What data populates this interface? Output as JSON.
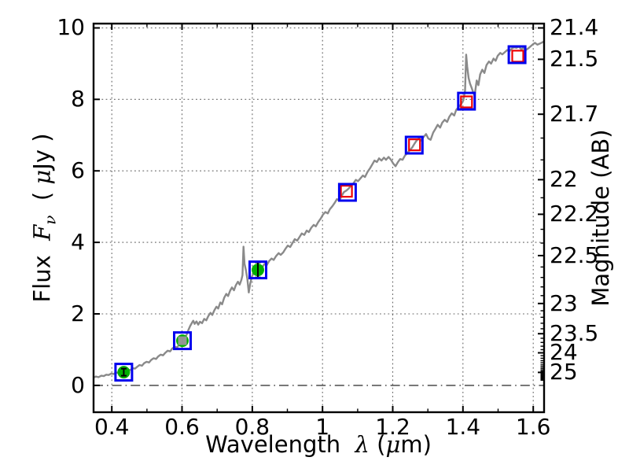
{
  "labels": {
    "xlabel": {
      "t1": "Wavelength  ",
      "lambda": "λ",
      "t2": " (",
      "mu": "μ",
      "t3": "m)"
    },
    "ylabel_left": {
      "t1": "Flux  ",
      "F": "F",
      "nu": "ν",
      "t2": "  ( ",
      "mu": "μ",
      "t3": "Jy )"
    },
    "ylabel_right": "Magnitude (AB)"
  },
  "chart_data": {
    "type": "line",
    "title": "",
    "xlabel": "Wavelength λ (μm)",
    "ylabel_left": "Flux Fν (μJy)",
    "ylabel_right": "Magnitude (AB)",
    "xlim": [
      0.348,
      1.631
    ],
    "ylim_flux": [
      -0.75,
      10.12
    ],
    "grid": "dotted on x and y majors",
    "zero_line": {
      "flux": 0,
      "style": "dashdot",
      "color": "#3a3a3a"
    },
    "x_major_ticks": [
      {
        "v": 0.4,
        "label": "0.4"
      },
      {
        "v": 0.6,
        "label": "0.6"
      },
      {
        "v": 0.8,
        "label": "0.8"
      },
      {
        "v": 1.0,
        "label": "1"
      },
      {
        "v": 1.2,
        "label": "1.2"
      },
      {
        "v": 1.4,
        "label": "1.4"
      },
      {
        "v": 1.6,
        "label": "1.6"
      }
    ],
    "x_minor_ticks": [
      0.5,
      0.7,
      0.9,
      1.1,
      1.3,
      1.5
    ],
    "flux_major_ticks": [
      {
        "v": 0,
        "label": "0"
      },
      {
        "v": 2,
        "label": "2"
      },
      {
        "v": 4,
        "label": "4"
      },
      {
        "v": 6,
        "label": "6"
      },
      {
        "v": 8,
        "label": "8"
      },
      {
        "v": 10,
        "label": "10"
      }
    ],
    "mag_major_ticks": [
      {
        "v": 21.4,
        "label": "21.4"
      },
      {
        "v": 21.5,
        "label": "21.5"
      },
      {
        "v": 21.7,
        "label": "21.7"
      },
      {
        "v": 22,
        "label": "22"
      },
      {
        "v": 22.2,
        "label": "22.2"
      },
      {
        "v": 22.5,
        "label": "22.5"
      },
      {
        "v": 23,
        "label": "23"
      },
      {
        "v": 23.5,
        "label": "23.5"
      },
      {
        "v": 24,
        "label": "24"
      },
      {
        "v": 25,
        "label": "25"
      }
    ],
    "mag_minor_step": 0.1,
    "mag_minor_range": [
      21.4,
      26.0
    ],
    "ab_zeropoint_ujy": 23.9,
    "series": [
      {
        "name": "model-spectrum",
        "type": "line",
        "color": "#8a8a8a",
        "width": 2.4,
        "points": [
          [
            0.348,
            0.22
          ],
          [
            0.355,
            0.25
          ],
          [
            0.362,
            0.23
          ],
          [
            0.37,
            0.27
          ],
          [
            0.377,
            0.26
          ],
          [
            0.384,
            0.3
          ],
          [
            0.391,
            0.29
          ],
          [
            0.398,
            0.33
          ],
          [
            0.405,
            0.32
          ],
          [
            0.412,
            0.36
          ],
          [
            0.419,
            0.35
          ],
          [
            0.426,
            0.38
          ],
          [
            0.433,
            0.4
          ],
          [
            0.44,
            0.42
          ],
          [
            0.447,
            0.44
          ],
          [
            0.453,
            0.43
          ],
          [
            0.459,
            0.48
          ],
          [
            0.466,
            0.47
          ],
          [
            0.472,
            0.52
          ],
          [
            0.479,
            0.57
          ],
          [
            0.486,
            0.55
          ],
          [
            0.492,
            0.62
          ],
          [
            0.499,
            0.66
          ],
          [
            0.506,
            0.64
          ],
          [
            0.512,
            0.71
          ],
          [
            0.519,
            0.76
          ],
          [
            0.526,
            0.74
          ],
          [
            0.532,
            0.81
          ],
          [
            0.539,
            0.86
          ],
          [
            0.546,
            0.84
          ],
          [
            0.552,
            0.91
          ],
          [
            0.559,
            0.97
          ],
          [
            0.566,
            0.95
          ],
          [
            0.572,
            1.03
          ],
          [
            0.579,
            1.08
          ],
          [
            0.586,
            1.06
          ],
          [
            0.592,
            1.15
          ],
          [
            0.599,
            1.22
          ],
          [
            0.606,
            1.3
          ],
          [
            0.613,
            1.42
          ],
          [
            0.618,
            1.55
          ],
          [
            0.623,
            1.66
          ],
          [
            0.628,
            1.75
          ],
          [
            0.632,
            1.81
          ],
          [
            0.636,
            1.72
          ],
          [
            0.641,
            1.79
          ],
          [
            0.646,
            1.7
          ],
          [
            0.651,
            1.78
          ],
          [
            0.657,
            1.74
          ],
          [
            0.663,
            1.86
          ],
          [
            0.669,
            1.82
          ],
          [
            0.675,
            1.94
          ],
          [
            0.681,
            2.03
          ],
          [
            0.686,
            1.97
          ],
          [
            0.692,
            2.1
          ],
          [
            0.698,
            2.2
          ],
          [
            0.703,
            2.15
          ],
          [
            0.709,
            2.32
          ],
          [
            0.714,
            2.27
          ],
          [
            0.72,
            2.45
          ],
          [
            0.726,
            2.56
          ],
          [
            0.731,
            2.5
          ],
          [
            0.737,
            2.65
          ],
          [
            0.742,
            2.74
          ],
          [
            0.748,
            2.66
          ],
          [
            0.753,
            2.8
          ],
          [
            0.759,
            2.9
          ],
          [
            0.764,
            2.82
          ],
          [
            0.769,
            2.95
          ],
          [
            0.772,
            3.08
          ],
          [
            0.775,
            3.88
          ],
          [
            0.778,
            3.4
          ],
          [
            0.782,
            3.22
          ],
          [
            0.786,
            2.98
          ],
          [
            0.79,
            2.6
          ],
          [
            0.794,
            2.84
          ],
          [
            0.799,
            3.05
          ],
          [
            0.804,
            3.14
          ],
          [
            0.81,
            3.1
          ],
          [
            0.816,
            3.22
          ],
          [
            0.822,
            3.17
          ],
          [
            0.828,
            3.3
          ],
          [
            0.835,
            3.4
          ],
          [
            0.841,
            3.36
          ],
          [
            0.848,
            3.48
          ],
          [
            0.855,
            3.55
          ],
          [
            0.861,
            3.51
          ],
          [
            0.868,
            3.62
          ],
          [
            0.875,
            3.7
          ],
          [
            0.881,
            3.65
          ],
          [
            0.888,
            3.72
          ],
          [
            0.895,
            3.83
          ],
          [
            0.901,
            3.91
          ],
          [
            0.908,
            3.87
          ],
          [
            0.915,
            3.99
          ],
          [
            0.921,
            4.09
          ],
          [
            0.928,
            4.05
          ],
          [
            0.935,
            4.16
          ],
          [
            0.941,
            4.25
          ],
          [
            0.948,
            4.21
          ],
          [
            0.955,
            4.33
          ],
          [
            0.961,
            4.29
          ],
          [
            0.968,
            4.41
          ],
          [
            0.975,
            4.49
          ],
          [
            0.981,
            4.45
          ],
          [
            0.988,
            4.57
          ],
          [
            0.995,
            4.67
          ],
          [
            1.001,
            4.77
          ],
          [
            1.008,
            4.85
          ],
          [
            1.015,
            4.81
          ],
          [
            1.021,
            4.93
          ],
          [
            1.028,
            5.01
          ],
          [
            1.035,
            5.11
          ],
          [
            1.041,
            5.21
          ],
          [
            1.048,
            5.17
          ],
          [
            1.055,
            5.31
          ],
          [
            1.061,
            5.41
          ],
          [
            1.068,
            5.45
          ],
          [
            1.075,
            5.51
          ],
          [
            1.081,
            5.59
          ],
          [
            1.088,
            5.65
          ],
          [
            1.095,
            5.75
          ],
          [
            1.101,
            5.71
          ],
          [
            1.108,
            5.79
          ],
          [
            1.115,
            5.87
          ],
          [
            1.121,
            5.83
          ],
          [
            1.128,
            5.97
          ],
          [
            1.135,
            6.07
          ],
          [
            1.141,
            6.17
          ],
          [
            1.148,
            6.29
          ],
          [
            1.155,
            6.25
          ],
          [
            1.161,
            6.35
          ],
          [
            1.168,
            6.29
          ],
          [
            1.175,
            6.37
          ],
          [
            1.181,
            6.31
          ],
          [
            1.188,
            6.39
          ],
          [
            1.195,
            6.31
          ],
          [
            1.201,
            6.21
          ],
          [
            1.208,
            6.13
          ],
          [
            1.215,
            6.25
          ],
          [
            1.221,
            6.33
          ],
          [
            1.228,
            6.31
          ],
          [
            1.235,
            6.43
          ],
          [
            1.241,
            6.49
          ],
          [
            1.248,
            6.57
          ],
          [
            1.255,
            6.65
          ],
          [
            1.261,
            6.75
          ],
          [
            1.268,
            6.85
          ],
          [
            1.275,
            6.91
          ],
          [
            1.281,
            6.85
          ],
          [
            1.288,
            6.95
          ],
          [
            1.295,
            7.03
          ],
          [
            1.301,
            6.91
          ],
          [
            1.308,
            6.87
          ],
          [
            1.315,
            7.07
          ],
          [
            1.321,
            7.17
          ],
          [
            1.328,
            7.29
          ],
          [
            1.335,
            7.21
          ],
          [
            1.341,
            7.35
          ],
          [
            1.348,
            7.43
          ],
          [
            1.355,
            7.37
          ],
          [
            1.361,
            7.51
          ],
          [
            1.368,
            7.61
          ],
          [
            1.375,
            7.55
          ],
          [
            1.381,
            7.71
          ],
          [
            1.388,
            7.79
          ],
          [
            1.395,
            7.87
          ],
          [
            1.401,
            7.97
          ],
          [
            1.406,
            8.25
          ],
          [
            1.409,
            9.25
          ],
          [
            1.412,
            8.92
          ],
          [
            1.416,
            8.6
          ],
          [
            1.42,
            8.44
          ],
          [
            1.424,
            8.34
          ],
          [
            1.429,
            8.2
          ],
          [
            1.433,
            8.1
          ],
          [
            1.439,
            8.53
          ],
          [
            1.444,
            8.4
          ],
          [
            1.449,
            8.7
          ],
          [
            1.455,
            8.83
          ],
          [
            1.461,
            8.74
          ],
          [
            1.467,
            8.96
          ],
          [
            1.474,
            9.06
          ],
          [
            1.48,
            9.0
          ],
          [
            1.487,
            9.14
          ],
          [
            1.493,
            9.08
          ],
          [
            1.499,
            9.22
          ],
          [
            1.506,
            9.3
          ],
          [
            1.512,
            9.26
          ],
          [
            1.519,
            9.32
          ],
          [
            1.526,
            9.38
          ],
          [
            1.532,
            9.34
          ],
          [
            1.539,
            9.42
          ],
          [
            1.546,
            9.46
          ],
          [
            1.552,
            9.44
          ],
          [
            1.559,
            9.48
          ],
          [
            1.566,
            9.4
          ],
          [
            1.572,
            9.44
          ],
          [
            1.579,
            9.38
          ],
          [
            1.585,
            9.42
          ],
          [
            1.592,
            9.48
          ],
          [
            1.599,
            9.54
          ],
          [
            1.605,
            9.58
          ],
          [
            1.612,
            9.53
          ],
          [
            1.619,
            9.56
          ],
          [
            1.625,
            9.59
          ],
          [
            1.631,
            9.62
          ]
        ]
      },
      {
        "name": "blue-open-squares",
        "type": "scatter",
        "marker": "open-square",
        "color": "#0000ee",
        "size": 21,
        "points": [
          [
            0.434,
            0.37
          ],
          [
            0.601,
            1.25
          ],
          [
            0.816,
            3.23
          ],
          [
            1.071,
            5.4
          ],
          [
            1.261,
            6.72
          ],
          [
            1.41,
            7.95
          ],
          [
            1.554,
            9.25
          ]
        ]
      },
      {
        "name": "red-open-squares",
        "type": "scatter",
        "marker": "open-square",
        "color": "#ee0000",
        "size": 14,
        "points": [
          [
            1.068,
            5.43
          ],
          [
            1.262,
            6.73
          ],
          [
            1.41,
            7.93
          ],
          [
            1.556,
            9.21
          ]
        ]
      },
      {
        "name": "green-points-with-errorbars",
        "type": "scatter",
        "marker": "filled-circle-errorbar",
        "color": "#00b000",
        "size": 16,
        "points": [
          [
            0.434,
            0.37,
            0.1
          ],
          [
            0.601,
            1.25,
            0.08
          ],
          [
            0.816,
            3.23,
            0.21
          ]
        ]
      },
      {
        "name": "gray-filled-square",
        "type": "scatter",
        "marker": "filled-square",
        "color": "#9b9b9b",
        "size": 11,
        "points": [
          [
            0.601,
            1.25
          ]
        ]
      }
    ]
  }
}
